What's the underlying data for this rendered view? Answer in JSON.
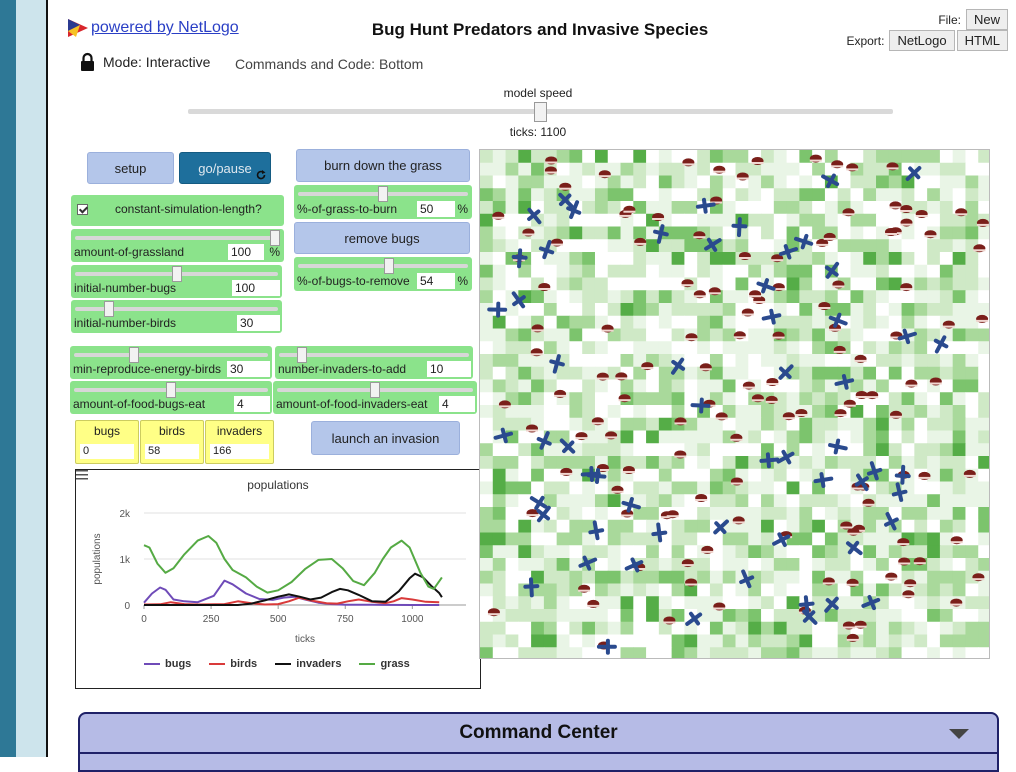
{
  "header": {
    "powered_by": "powered by NetLogo",
    "title": "Bug Hunt Predators and Invasive Species",
    "file_label": "File:",
    "new_button": "New",
    "export_label": "Export:",
    "export_netlogo": "NetLogo",
    "export_html": "HTML"
  },
  "status": {
    "mode": "Mode: Interactive",
    "commands_position": "Commands and Code: Bottom"
  },
  "speed": {
    "label": "model speed",
    "value_fraction": 0.5,
    "ticks_text": "ticks: 1100"
  },
  "buttons": {
    "setup": "setup",
    "go_pause": "go/pause",
    "burn_grass": "burn down the grass",
    "remove_bugs": "remove bugs",
    "launch_invasion": "launch an invasion"
  },
  "switches": {
    "constant_length": {
      "label": "constant-simulation-length?",
      "on": true
    }
  },
  "sliders": {
    "amount_grassland": {
      "label": "amount-of-grassland",
      "value": "100",
      "unit": "%",
      "fraction": 1.0
    },
    "initial_bugs": {
      "label": "initial-number-bugs",
      "value": "100",
      "fraction": 0.5
    },
    "initial_birds": {
      "label": "initial-number-birds",
      "value": "30",
      "fraction": 0.15
    },
    "grass_to_burn": {
      "label": "%-of-grass-to-burn",
      "value": "50",
      "unit": "%",
      "fraction": 0.5
    },
    "bugs_to_remove": {
      "label": "%-of-bugs-to-remove",
      "value": "54",
      "unit": "%",
      "fraction": 0.54
    },
    "min_reproduce_birds": {
      "label": "min-reproduce-energy-birds",
      "value": "30",
      "fraction": 0.3
    },
    "invaders_to_add": {
      "label": "number-invaders-to-add",
      "value": "10",
      "fraction": 0.1
    },
    "food_bugs_eat": {
      "label": "amount-of-food-bugs-eat",
      "value": "4",
      "fraction": 0.5
    },
    "food_invaders_eat": {
      "label": "amount-of-food-invaders-eat",
      "value": "4",
      "fraction": 0.5
    }
  },
  "monitors": {
    "bugs": {
      "label": "bugs",
      "value": "0"
    },
    "birds": {
      "label": "birds",
      "value": "58"
    },
    "invaders": {
      "label": "invaders",
      "value": "166"
    }
  },
  "plot": {
    "title": "populations",
    "menu_icon": "hamburger-menu-icon"
  },
  "chart_data": {
    "type": "line",
    "title": "populations",
    "xlabel": "ticks",
    "ylabel": "populations",
    "xlim": [
      0,
      1200
    ],
    "ylim": [
      0,
      2000
    ],
    "xticks": [
      "0",
      "250",
      "500",
      "750",
      "1000"
    ],
    "yticks": [
      "0",
      "1k",
      "2k"
    ],
    "series": [
      {
        "name": "bugs",
        "color": "#6f4bb8",
        "points": [
          [
            0,
            50
          ],
          [
            30,
            250
          ],
          [
            60,
            380
          ],
          [
            80,
            330
          ],
          [
            110,
            120
          ],
          [
            150,
            80
          ],
          [
            200,
            60
          ],
          [
            260,
            200
          ],
          [
            300,
            530
          ],
          [
            330,
            450
          ],
          [
            380,
            250
          ],
          [
            430,
            130
          ],
          [
            480,
            110
          ],
          [
            520,
            160
          ],
          [
            560,
            180
          ],
          [
            600,
            120
          ],
          [
            650,
            50
          ],
          [
            700,
            20
          ],
          [
            750,
            5
          ],
          [
            850,
            5
          ],
          [
            1000,
            0
          ],
          [
            1100,
            0
          ]
        ]
      },
      {
        "name": "birds",
        "color": "#d93a3a",
        "points": [
          [
            0,
            10
          ],
          [
            60,
            15
          ],
          [
            100,
            60
          ],
          [
            150,
            20
          ],
          [
            200,
            10
          ],
          [
            300,
            20
          ],
          [
            350,
            80
          ],
          [
            400,
            40
          ],
          [
            450,
            10
          ],
          [
            500,
            20
          ],
          [
            540,
            80
          ],
          [
            580,
            160
          ],
          [
            620,
            100
          ],
          [
            680,
            40
          ],
          [
            720,
            30
          ],
          [
            760,
            80
          ],
          [
            800,
            120
          ],
          [
            850,
            70
          ],
          [
            900,
            40
          ],
          [
            930,
            80
          ],
          [
            960,
            150
          ],
          [
            1000,
            120
          ],
          [
            1050,
            70
          ],
          [
            1100,
            58
          ]
        ]
      },
      {
        "name": "invaders",
        "color": "#111111",
        "points": [
          [
            0,
            0
          ],
          [
            200,
            0
          ],
          [
            350,
            0
          ],
          [
            400,
            30
          ],
          [
            450,
            100
          ],
          [
            500,
            180
          ],
          [
            540,
            230
          ],
          [
            580,
            180
          ],
          [
            620,
            120
          ],
          [
            660,
            160
          ],
          [
            700,
            280
          ],
          [
            730,
            350
          ],
          [
            760,
            320
          ],
          [
            800,
            220
          ],
          [
            850,
            80
          ],
          [
            900,
            70
          ],
          [
            950,
            300
          ],
          [
            990,
            580
          ],
          [
            1010,
            680
          ],
          [
            1040,
            600
          ],
          [
            1070,
            420
          ],
          [
            1100,
            260
          ],
          [
            1110,
            170
          ]
        ]
      },
      {
        "name": "grass",
        "color": "#55aa44",
        "points": [
          [
            0,
            1300
          ],
          [
            20,
            1250
          ],
          [
            50,
            900
          ],
          [
            80,
            700
          ],
          [
            110,
            800
          ],
          [
            150,
            1100
          ],
          [
            200,
            1400
          ],
          [
            240,
            1500
          ],
          [
            270,
            1350
          ],
          [
            300,
            1000
          ],
          [
            330,
            760
          ],
          [
            380,
            600
          ],
          [
            420,
            400
          ],
          [
            460,
            270
          ],
          [
            500,
            320
          ],
          [
            550,
            500
          ],
          [
            600,
            780
          ],
          [
            650,
            980
          ],
          [
            700,
            1000
          ],
          [
            740,
            800
          ],
          [
            780,
            520
          ],
          [
            820,
            430
          ],
          [
            860,
            700
          ],
          [
            890,
            1000
          ],
          [
            920,
            1250
          ],
          [
            960,
            1400
          ],
          [
            990,
            1250
          ],
          [
            1030,
            700
          ],
          [
            1060,
            400
          ],
          [
            1080,
            350
          ],
          [
            1110,
            600
          ]
        ]
      }
    ]
  },
  "command_center": {
    "title": "Command Center",
    "caret_icon": "caret-down-icon"
  },
  "world": {
    "bug_color": "#7a1f1a",
    "invader_color": "#2a4a8e",
    "grass_shades": [
      "#ffffff",
      "#e9f5e6",
      "#cfe9c6",
      "#a9d99b",
      "#7cc46d",
      "#55ad47"
    ],
    "patch_grid": 40,
    "invaders_count": 166,
    "bugs_shown": 0,
    "seed": 7
  }
}
